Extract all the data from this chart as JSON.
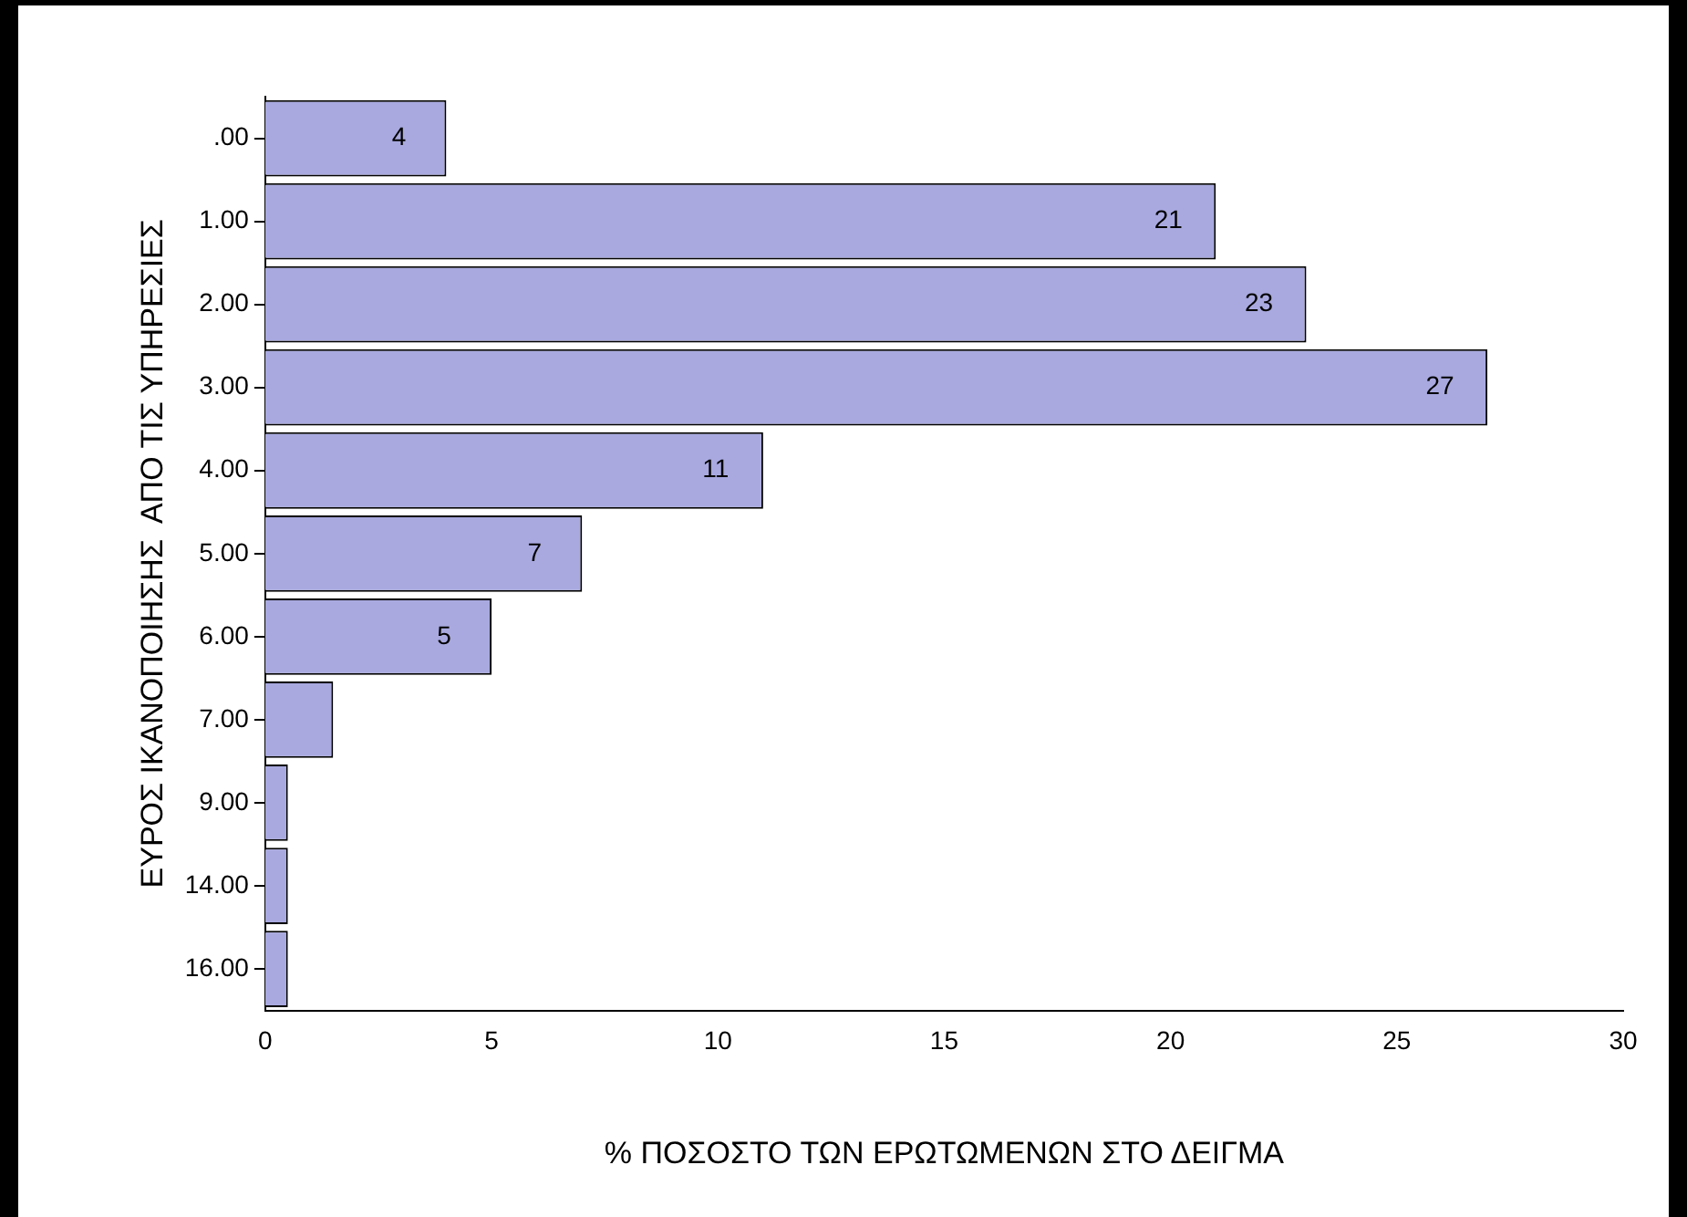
{
  "chart_data": {
    "type": "bar",
    "orientation": "horizontal",
    "xlabel": "% ΠΟΣΟΣΤΟ ΤΩΝ ΕΡΩΤΩΜΕΝΩΝ ΣΤΟ ΔΕΙΓΜΑ",
    "ylabel": "ΕΥΡΟΣ ΙΚΑΝΟΠΟΙΗΣΗΣ  ΑΠΟ ΤΙΣ ΥΠΗΡΕΣΙΕΣ",
    "categories": [
      ".00",
      "1.00",
      "2.00",
      "3.00",
      "4.00",
      "5.00",
      "6.00",
      "7.00",
      "9.00",
      "14.00",
      "16.00"
    ],
    "values": [
      4,
      21,
      23,
      27,
      11,
      7,
      5,
      1.5,
      0.5,
      0.5,
      0.5
    ],
    "value_labels": [
      "4",
      "21",
      "23",
      "27",
      "11",
      "7",
      "5",
      null,
      null,
      null,
      null
    ],
    "color": "#a9a9e0",
    "xlim": [
      0,
      30
    ],
    "xticks": [
      0,
      5,
      10,
      15,
      20,
      25,
      30
    ],
    "grid": false,
    "legend": false
  }
}
